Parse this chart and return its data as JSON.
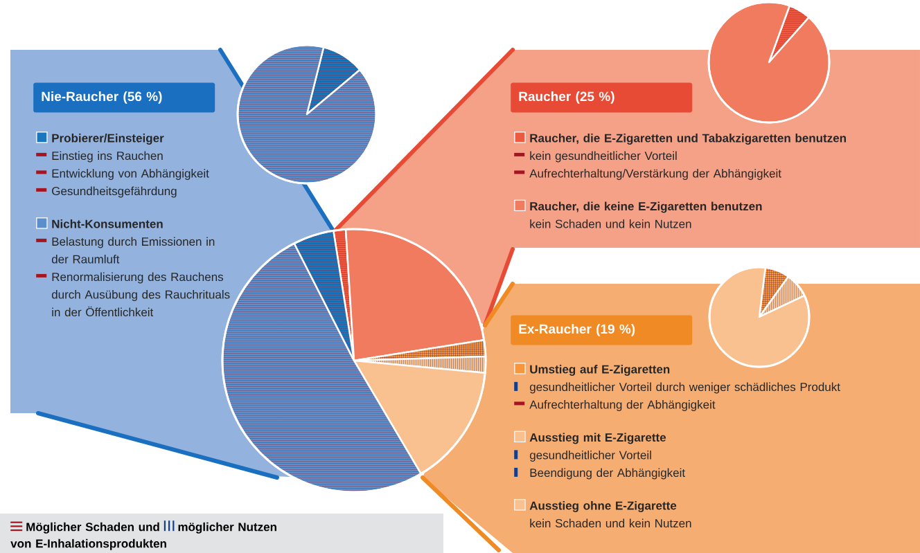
{
  "chart_data": [
    {
      "type": "pie",
      "categories": [
        null,
        null,
        null,
        null,
        null,
        null,
        null
      ],
      "values": [
        1.5,
        23.5,
        2,
        2,
        15,
        51,
        5
      ],
      "colors": [
        "#ee5a40",
        "#f07b5e",
        "#f7963c",
        "#f9bf8e",
        "#f9c190",
        "#5b8fcb",
        "#1a76bd"
      ],
      "annotations": [
        "Möglicher Schaden und",
        "möglicher Nutzen",
        "von E-Inhalationsprodukten"
      ]
    },
    {
      "type": "pie",
      "title": "Nie-Raucher (56 %)",
      "legend": "bottom left",
      "categories": [
        "Probierer/Einsteiger",
        "Nicht-Konsumenten"
      ],
      "values": [
        10,
        90
      ],
      "colors": [
        "#1a76bd",
        "#5b8fcb"
      ],
      "annotations": [
        "Einstieg ins Rauchen",
        "Entwicklung von Abhängigkeit",
        "Gesundheitsgefährdung",
        "Belastung durch Emissionen in der Raumluft",
        "Renormalisierung des Rauchens durch Ausübung des Rauchrituals in der Öffentlichkeit"
      ]
    },
    {
      "type": "pie",
      "title": "Raucher (25 %)",
      "legend": "bottom left",
      "categories": [
        "Raucher, die E-Zigaretten und Tabakzigaretten benutzen",
        "Raucher, die keine E-Zigaretten benutzen"
      ],
      "values": [
        6,
        94
      ],
      "colors": [
        "#ee5a40",
        "#f07b5e"
      ],
      "annotations": [
        "kein gesundheitlicher Vorteil",
        "Aufrechterhaltung/Verstärkung der Abhängigkeit",
        "kein Schaden und kein Nutzen"
      ]
    },
    {
      "type": "pie",
      "title": "Ex-Raucher (19 %)",
      "legend": "left",
      "categories": [
        "Umstieg auf E-Zigaretten",
        "Ausstieg mit E-Zigarette",
        "Ausstieg ohne E-Zigarette"
      ],
      "values": [
        8,
        8,
        84
      ],
      "colors": [
        "#f7963c",
        "#f9bf8e",
        "#f9c190"
      ],
      "annotations": [
        "gesundheitlicher Vorteil durch weniger schädliches Produkt",
        "Aufrechterhaltung der Abhängigkeit",
        "gesundheitlicher Vorteil",
        "Beendigung der Abhängigkeit",
        "kein Schaden und kein Nutzen"
      ]
    }
  ]
}
